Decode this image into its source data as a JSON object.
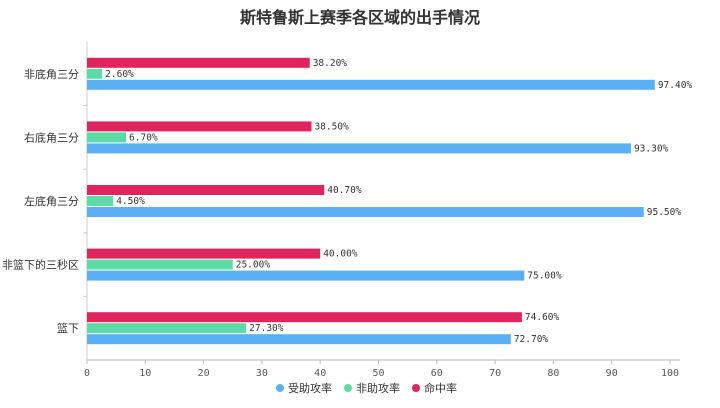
{
  "chart_data": {
    "type": "bar",
    "orientation": "horizontal",
    "title": "斯特鲁斯上赛季各区域的出手情况",
    "categories": [
      "非底角三分",
      "右底角三分",
      "左底角三分",
      "非篮下的三秒区",
      "篮下"
    ],
    "series": [
      {
        "name": "命中率",
        "color": "#e0245e",
        "values": [
          38.2,
          38.5,
          40.7,
          40.0,
          74.6
        ],
        "labels": [
          "38.20%",
          "38.50%",
          "40.70%",
          "40.00%",
          "74.60%"
        ]
      },
      {
        "name": "非助攻率",
        "color": "#5ddba6",
        "values": [
          2.6,
          6.7,
          4.5,
          25.0,
          27.3
        ],
        "labels": [
          "2.60%",
          "6.70%",
          "4.50%",
          "25.00%",
          "27.30%"
        ]
      },
      {
        "name": "受助攻率",
        "color": "#5aaff5",
        "values": [
          97.4,
          93.3,
          95.5,
          75.0,
          72.7
        ],
        "labels": [
          "97.40%",
          "93.30%",
          "95.50%",
          "75.00%",
          "72.70%"
        ]
      }
    ],
    "xlim": [
      0,
      100
    ],
    "xticks": [
      "0",
      "10",
      "20",
      "30",
      "40",
      "50",
      "60",
      "70",
      "80",
      "90",
      "100"
    ],
    "legend": {
      "position": "bottom",
      "order": [
        "受助攻率",
        "非助攻率",
        "命中率"
      ]
    },
    "grid": false
  }
}
